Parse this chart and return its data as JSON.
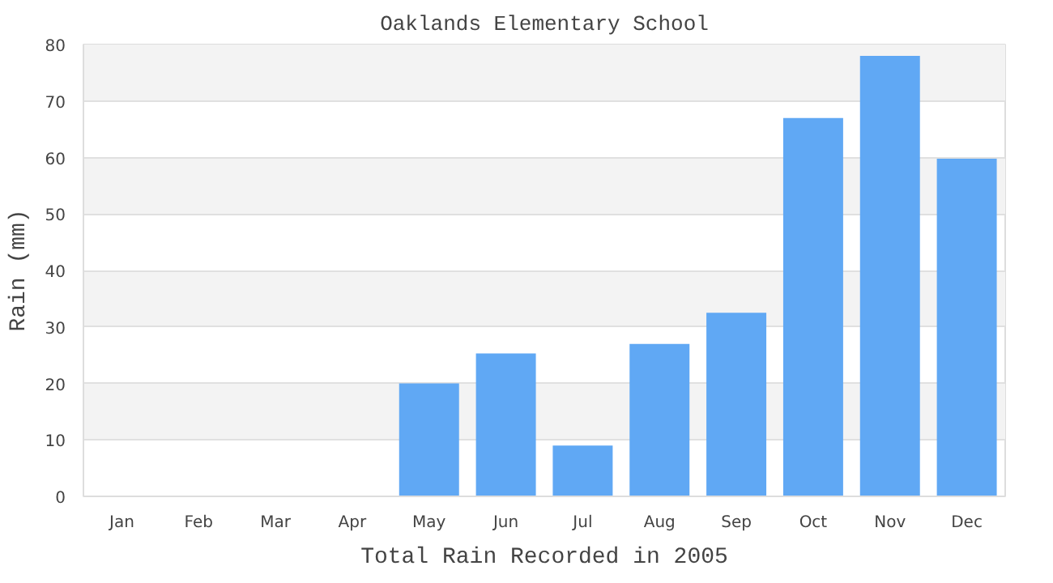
{
  "chart_data": {
    "type": "bar",
    "title": "Oaklands Elementary School",
    "xlabel": "Total Rain Recorded in 2005",
    "ylabel": "Rain (mm)",
    "categories": [
      "Jan",
      "Feb",
      "Mar",
      "Apr",
      "May",
      "Jun",
      "Jul",
      "Aug",
      "Sep",
      "Oct",
      "Nov",
      "Dec"
    ],
    "values": [
      0,
      0,
      0,
      0,
      20,
      25.3,
      9,
      27,
      32.5,
      67,
      78,
      59.8
    ],
    "color": "#60a8f4",
    "ylim": [
      0,
      80
    ],
    "yticks": [
      0,
      10,
      20,
      30,
      40,
      50,
      60,
      70,
      80
    ],
    "grid": "y"
  }
}
